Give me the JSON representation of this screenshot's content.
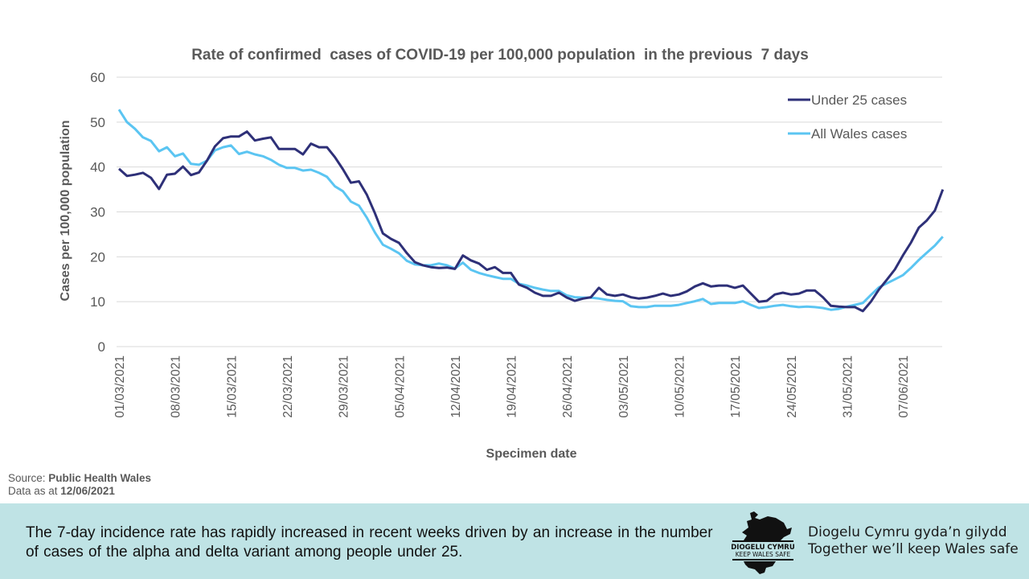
{
  "chart_data": {
    "type": "line",
    "title": "Rate of confirmed  cases of COVID-19 per 100,000 population  in the previous  7 days",
    "xlabel": "Specimen date",
    "ylabel": "Cases per 100,000 population",
    "ylim": [
      0,
      60
    ],
    "yticks": [
      "0",
      "10",
      "20",
      "30",
      "40",
      "50",
      "60"
    ],
    "grid": true,
    "legend_position": "top-right",
    "x_start": "01/03/2021",
    "x_end": "12/06/2021",
    "xtick_labels": [
      "01/03/2021",
      "08/03/2021",
      "15/03/2021",
      "22/03/2021",
      "29/03/2021",
      "05/04/2021",
      "12/04/2021",
      "19/04/2021",
      "26/04/2021",
      "03/05/2021",
      "10/05/2021",
      "17/05/2021",
      "24/05/2021",
      "31/05/2021",
      "07/06/2021"
    ],
    "xtick_step_days": 7,
    "series": [
      {
        "name": "Under 25 cases",
        "color": "#2e3078",
        "values": [
          39.6,
          38.0,
          38.3,
          38.7,
          37.6,
          35.1,
          38.3,
          38.5,
          40.1,
          38.2,
          38.8,
          41.4,
          44.6,
          46.4,
          46.8,
          46.8,
          47.9,
          45.9,
          46.3,
          46.6,
          44.0,
          44.0,
          44.0,
          42.8,
          45.2,
          44.4,
          44.4,
          42.2,
          39.5,
          36.5,
          36.8,
          33.8,
          29.7,
          25.2,
          24.0,
          23.1,
          20.8,
          18.8,
          18.1,
          17.7,
          17.5,
          17.6,
          17.3,
          20.3,
          19.2,
          18.5,
          17.1,
          17.7,
          16.4,
          16.4,
          13.8,
          13.1,
          12.0,
          11.3,
          11.3,
          12.0,
          10.9,
          10.2,
          10.7,
          11.0,
          13.1,
          11.6,
          11.3,
          11.6,
          11.0,
          10.7,
          10.9,
          11.3,
          11.8,
          11.3,
          11.6,
          12.3,
          13.4,
          14.1,
          13.4,
          13.6,
          13.6,
          13.1,
          13.6,
          11.8,
          10.0,
          10.2,
          11.6,
          12.0,
          11.6,
          11.8,
          12.5,
          12.5,
          11.0,
          9.1,
          8.9,
          8.8,
          8.8,
          7.9,
          10.0,
          12.7,
          14.9,
          17.2,
          20.3,
          23.1,
          26.5,
          28.1,
          30.3,
          35.0
        ]
      },
      {
        "name": "All Wales cases",
        "color": "#5bc5f2",
        "values": [
          52.8,
          50.0,
          48.5,
          46.6,
          45.8,
          43.5,
          44.4,
          42.4,
          43.0,
          40.7,
          40.5,
          41.4,
          43.7,
          44.4,
          44.8,
          42.9,
          43.4,
          42.8,
          42.4,
          41.6,
          40.5,
          39.8,
          39.8,
          39.2,
          39.4,
          38.7,
          37.8,
          35.7,
          34.6,
          32.3,
          31.4,
          28.7,
          25.4,
          22.7,
          21.8,
          20.8,
          19.1,
          18.3,
          18.1,
          18.1,
          18.5,
          18.1,
          17.4,
          18.7,
          17.1,
          16.4,
          15.9,
          15.5,
          15.1,
          15.1,
          14.0,
          13.6,
          13.1,
          12.7,
          12.4,
          12.4,
          11.4,
          11.0,
          10.9,
          10.9,
          10.7,
          10.4,
          10.2,
          10.1,
          9.0,
          8.8,
          8.8,
          9.1,
          9.1,
          9.1,
          9.3,
          9.7,
          10.1,
          10.6,
          9.5,
          9.7,
          9.7,
          9.7,
          10.1,
          9.3,
          8.6,
          8.8,
          9.1,
          9.3,
          9.0,
          8.8,
          8.9,
          8.8,
          8.6,
          8.2,
          8.4,
          8.9,
          9.3,
          9.7,
          11.5,
          13.2,
          14.1,
          15.0,
          15.9,
          17.5,
          19.3,
          20.9,
          22.5,
          24.5
        ]
      }
    ]
  },
  "source": {
    "label": "Source: ",
    "value": "Public Health Wales",
    "date_label": "Data as at ",
    "date_value": "12/06/2021"
  },
  "footer": {
    "text": "The 7-day incidence rate has rapidly increased in recent weeks driven by an increase in the number  of cases of the alpha and delta variant among people under 25.",
    "logo_line1": "DIOGELU CYMRU",
    "logo_line2": "KEEP WALES SAFE",
    "logo_icon": "wales-map-icon",
    "slogan_line1": "Diogelu Cymru gyda’n gilydd",
    "slogan_line2": "Together we’ll keep Wales safe",
    "background": "#bfe3e5"
  }
}
